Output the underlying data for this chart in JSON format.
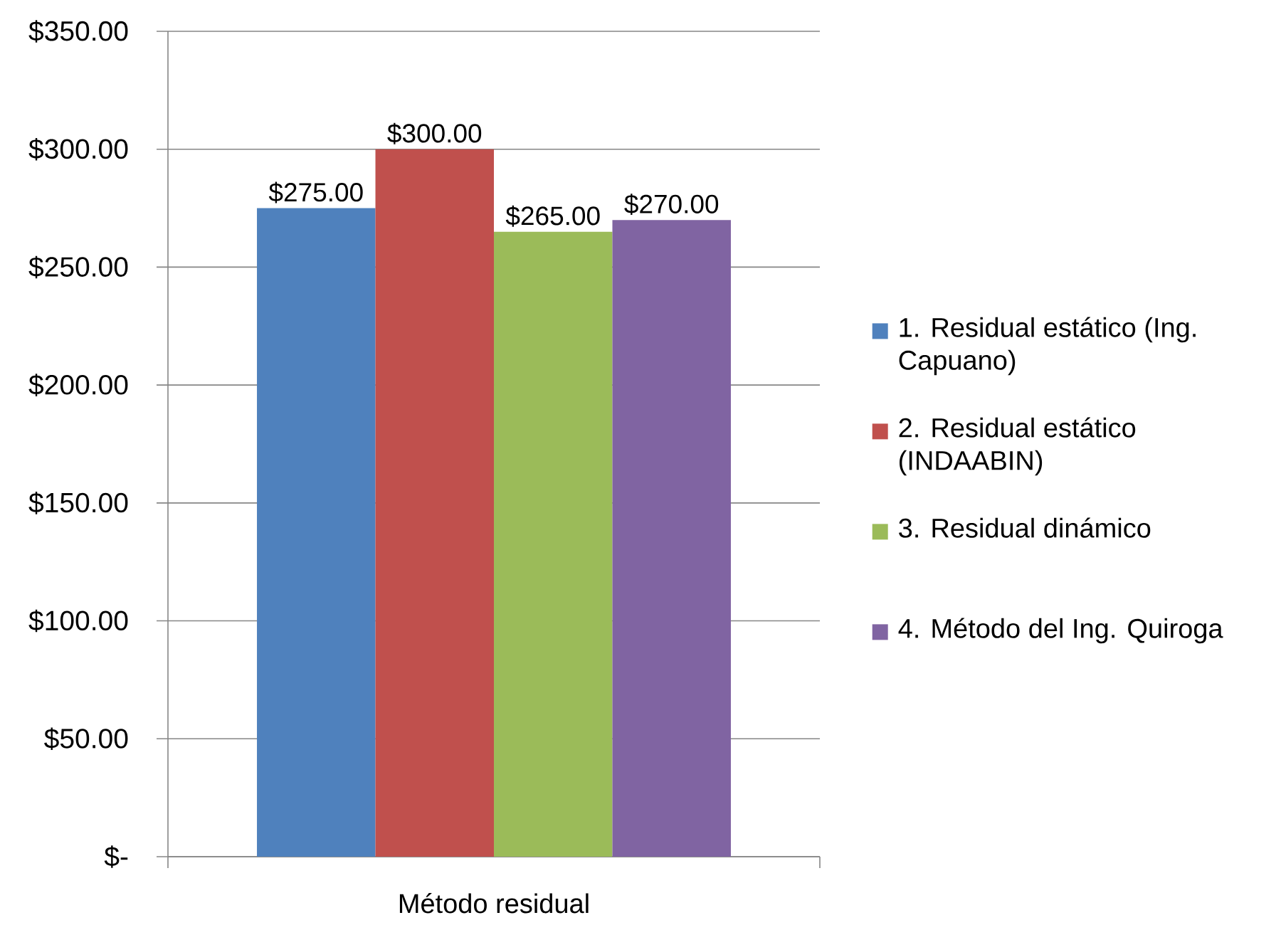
{
  "chart_data": {
    "type": "bar",
    "categories": [
      "Método residual"
    ],
    "series": [
      {
        "name": "1. Residual estático (Ing. Capuano)",
        "color": "#4f81bd",
        "values": [
          275
        ],
        "value_labels": [
          "$275.00"
        ]
      },
      {
        "name": "2. Residual estático (INDAABIN)",
        "color": "#c0504d",
        "values": [
          300
        ],
        "value_labels": [
          "$300.00"
        ]
      },
      {
        "name": "3. Residual dinámico",
        "color": "#9bbb59",
        "values": [
          265
        ],
        "value_labels": [
          "$265.00"
        ]
      },
      {
        "name": "4. Método del Ing. Quiroga",
        "color": "#8064a2",
        "values": [
          270
        ],
        "value_labels": [
          "$270.00"
        ]
      }
    ],
    "ylim": [
      0,
      350
    ],
    "yticks": [
      {
        "value": 0,
        "label": "$-"
      },
      {
        "value": 50,
        "label": "$50.00"
      },
      {
        "value": 100,
        "label": "$100.00"
      },
      {
        "value": 150,
        "label": "$150.00"
      },
      {
        "value": 200,
        "label": "$200.00"
      },
      {
        "value": 250,
        "label": "$250.00"
      },
      {
        "value": 300,
        "label": "$300.00"
      },
      {
        "value": 350,
        "label": "$350.00"
      }
    ],
    "grid": "y",
    "legend": "right"
  }
}
